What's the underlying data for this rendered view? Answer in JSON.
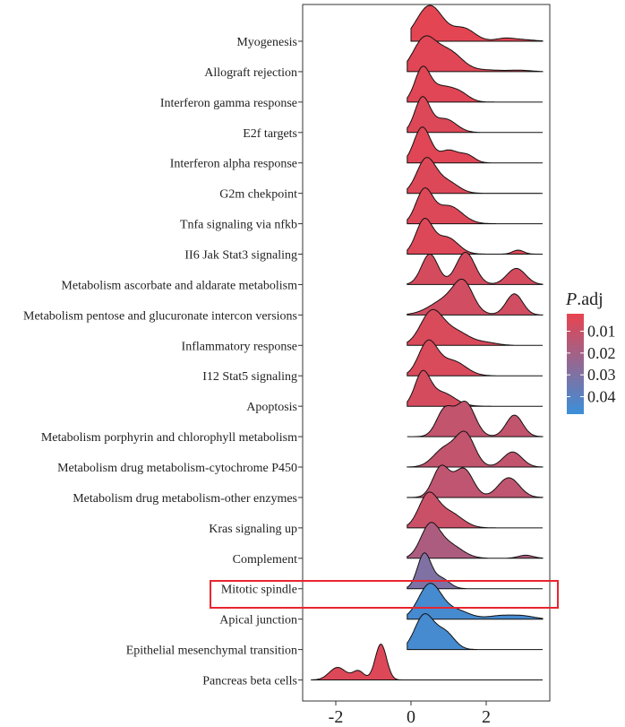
{
  "chart_data": {
    "type": "ridgeline",
    "title": "",
    "xlabel": "",
    "ylabel": "",
    "xlim": [
      -2.7,
      3.8
    ],
    "x_ticks": [
      -2,
      0,
      2
    ],
    "highlighted": "Mitotic spindle",
    "highlight_color": "#e8262f",
    "legend": {
      "title_italic": "P",
      "title_rest": ".adj",
      "ticks": [
        0.01,
        0.02,
        0.03,
        0.04
      ],
      "range": [
        0.002,
        0.048
      ],
      "color_low": "#e8434f",
      "color_high": "#3b8fd9",
      "position": "right"
    },
    "series": [
      {
        "name": "Myogenesis",
        "padj": 0.003,
        "x_start": 0.0,
        "x_end": 3.5,
        "peaks": [
          [
            0.5,
            1.0,
            0.35
          ],
          [
            1.4,
            0.35,
            0.3
          ],
          [
            2.5,
            0.08,
            0.25
          ],
          [
            3.0,
            0.04,
            0.3
          ]
        ]
      },
      {
        "name": "Allograft rejection",
        "padj": 0.004,
        "x_start": -0.1,
        "x_end": 3.5,
        "peaks": [
          [
            0.35,
            0.95,
            0.3
          ],
          [
            1.0,
            0.6,
            0.35
          ],
          [
            2.0,
            0.05,
            0.4
          ],
          [
            2.9,
            0.04,
            0.3
          ]
        ]
      },
      {
        "name": "Interferon gamma response",
        "padj": 0.004,
        "x_start": -0.1,
        "x_end": 3.5,
        "peaks": [
          [
            0.3,
            1.0,
            0.2
          ],
          [
            0.8,
            0.45,
            0.3
          ],
          [
            1.3,
            0.25,
            0.25
          ]
        ]
      },
      {
        "name": "E2f targets",
        "padj": 0.005,
        "x_start": -0.1,
        "x_end": 3.5,
        "peaks": [
          [
            0.3,
            1.0,
            0.2
          ],
          [
            0.9,
            0.4,
            0.3
          ]
        ]
      },
      {
        "name": "Interferon alpha response",
        "padj": 0.004,
        "x_start": -0.1,
        "x_end": 3.5,
        "peaks": [
          [
            0.3,
            1.0,
            0.22
          ],
          [
            1.0,
            0.35,
            0.25
          ],
          [
            1.5,
            0.2,
            0.2
          ]
        ]
      },
      {
        "name": "G2m chekpoint",
        "padj": 0.005,
        "x_start": -0.1,
        "x_end": 3.5,
        "peaks": [
          [
            0.4,
            1.0,
            0.25
          ],
          [
            0.95,
            0.35,
            0.3
          ]
        ]
      },
      {
        "name": "Tnfa signaling via nfkb",
        "padj": 0.005,
        "x_start": -0.1,
        "x_end": 3.5,
        "peaks": [
          [
            0.35,
            1.0,
            0.22
          ],
          [
            1.0,
            0.55,
            0.35
          ]
        ]
      },
      {
        "name": "II6 Jak Stat3 signaling",
        "padj": 0.005,
        "x_start": -0.1,
        "x_end": 3.5,
        "peaks": [
          [
            0.35,
            1.0,
            0.22
          ],
          [
            0.95,
            0.5,
            0.3
          ],
          [
            2.85,
            0.12,
            0.15
          ]
        ]
      },
      {
        "name": "Metabolism ascorbate and aldarate metabolism",
        "padj": 0.007,
        "x_start": -0.1,
        "x_end": 3.5,
        "peaks": [
          [
            0.5,
            0.85,
            0.22
          ],
          [
            1.45,
            0.9,
            0.25
          ],
          [
            2.8,
            0.45,
            0.25
          ]
        ]
      },
      {
        "name": "Metabolism pentose and glucuronate intercon versions",
        "padj": 0.008,
        "x_start": -0.1,
        "x_end": 3.5,
        "peaks": [
          [
            1.0,
            0.55,
            0.45
          ],
          [
            1.4,
            0.8,
            0.25
          ],
          [
            2.75,
            0.7,
            0.22
          ]
        ]
      },
      {
        "name": "Inflammatory response",
        "padj": 0.006,
        "x_start": -0.1,
        "x_end": 3.5,
        "peaks": [
          [
            0.55,
            1.0,
            0.3
          ],
          [
            1.2,
            0.4,
            0.35
          ],
          [
            2.0,
            0.08,
            0.3
          ]
        ]
      },
      {
        "name": "I12 Stat5 signaling",
        "padj": 0.006,
        "x_start": -0.1,
        "x_end": 3.5,
        "peaks": [
          [
            0.45,
            1.0,
            0.25
          ],
          [
            1.1,
            0.45,
            0.35
          ]
        ]
      },
      {
        "name": "Apoptosis",
        "padj": 0.007,
        "x_start": -0.1,
        "x_end": 3.5,
        "peaks": [
          [
            0.3,
            1.0,
            0.2
          ],
          [
            0.8,
            0.45,
            0.35
          ]
        ]
      },
      {
        "name": "Metabolism porphyrin and chlorophyll metabolism",
        "padj": 0.012,
        "x_start": -0.1,
        "x_end": 3.5,
        "peaks": [
          [
            0.9,
            0.75,
            0.22
          ],
          [
            1.45,
            0.95,
            0.25
          ],
          [
            2.75,
            0.6,
            0.22
          ]
        ]
      },
      {
        "name": "Metabolism drug metabolism-cytochrome P450",
        "padj": 0.012,
        "x_start": -0.1,
        "x_end": 3.5,
        "peaks": [
          [
            0.9,
            0.55,
            0.3
          ],
          [
            1.45,
            0.95,
            0.25
          ],
          [
            2.7,
            0.45,
            0.25
          ]
        ]
      },
      {
        "name": "Metabolism drug metabolism-other enzymes",
        "padj": 0.013,
        "x_start": -0.1,
        "x_end": 3.5,
        "peaks": [
          [
            0.8,
            0.85,
            0.22
          ],
          [
            1.4,
            0.8,
            0.25
          ],
          [
            2.6,
            0.55,
            0.28
          ]
        ]
      },
      {
        "name": "Kras signaling up",
        "padj": 0.01,
        "x_start": -0.1,
        "x_end": 3.5,
        "peaks": [
          [
            0.45,
            1.0,
            0.25
          ],
          [
            1.0,
            0.5,
            0.35
          ]
        ]
      },
      {
        "name": "Complement",
        "padj": 0.018,
        "x_start": -0.1,
        "x_end": 3.5,
        "peaks": [
          [
            0.5,
            1.0,
            0.25
          ],
          [
            1.0,
            0.45,
            0.35
          ],
          [
            3.05,
            0.1,
            0.2
          ]
        ]
      },
      {
        "name": "Mitotic spindle",
        "padj": 0.03,
        "x_start": -0.1,
        "x_end": 3.5,
        "peaks": [
          [
            0.35,
            1.0,
            0.18
          ],
          [
            0.8,
            0.3,
            0.22
          ]
        ]
      },
      {
        "name": "Apical junction",
        "padj": 0.045,
        "x_start": -0.1,
        "x_end": 3.5,
        "peaks": [
          [
            0.5,
            1.0,
            0.3
          ],
          [
            1.2,
            0.25,
            0.35
          ],
          [
            2.4,
            0.1,
            0.35
          ],
          [
            3.0,
            0.08,
            0.3
          ]
        ]
      },
      {
        "name": "Epithelial mesenchymal transition",
        "padj": 0.045,
        "x_start": -0.1,
        "x_end": 3.5,
        "peaks": [
          [
            0.35,
            1.0,
            0.25
          ],
          [
            0.9,
            0.5,
            0.25
          ]
        ]
      },
      {
        "name": "Pancreas beta cells",
        "padj": 0.005,
        "x_start": -2.65,
        "x_end": 3.5,
        "peaks": [
          [
            -1.95,
            0.35,
            0.22
          ],
          [
            -1.4,
            0.25,
            0.15
          ],
          [
            -0.8,
            1.0,
            0.15
          ]
        ]
      }
    ]
  }
}
